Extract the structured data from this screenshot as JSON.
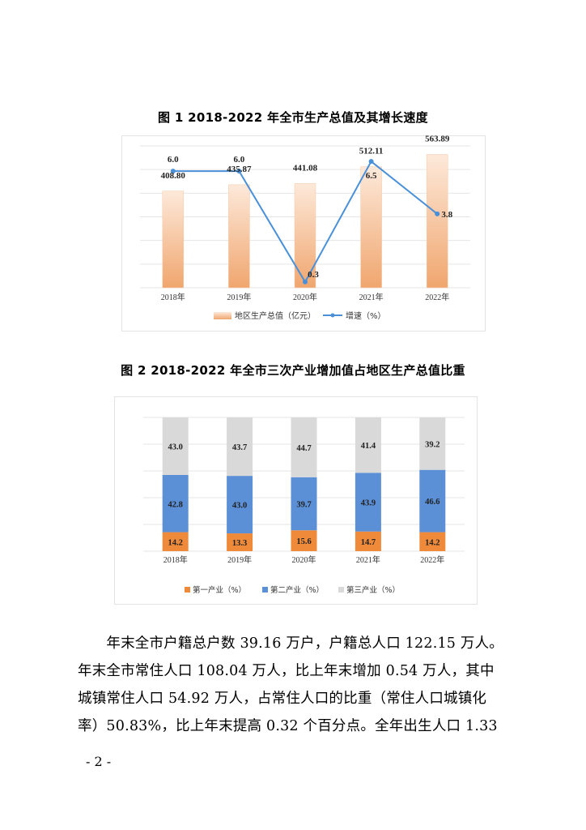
{
  "chart_data": [
    {
      "type": "bar",
      "title": "图 1   2018-2022 年全市生产总值及其增长速度",
      "categories": [
        "2018年",
        "2019年",
        "2020年",
        "2021年",
        "2022年"
      ],
      "series": [
        {
          "name": "地区生产总值（亿元）",
          "type": "bar",
          "values": [
            408.8,
            435.87,
            441.08,
            512.11,
            563.89
          ]
        },
        {
          "name": "增速（%）",
          "type": "line",
          "values": [
            6.0,
            6.0,
            0.3,
            6.5,
            3.8
          ]
        }
      ],
      "value_labels": {
        "bar": [
          "408.80",
          "435.87",
          "441.08",
          "512.11",
          "563.89"
        ],
        "line": [
          "6.0",
          "6.0",
          "0.3",
          "6.5",
          "3.8"
        ]
      },
      "ylim_bar": [
        0,
        600
      ],
      "ylim_line": [
        0,
        7.3
      ],
      "grid": true,
      "legend": "bottom",
      "colors": {
        "bar_top": "#fde9da",
        "bar_bottom": "#f0a66e",
        "line": "#4a90d9"
      }
    },
    {
      "type": "bar",
      "stacked": true,
      "title": "图 2   2018-2022 年全市三次产业增加值占地区生产总值比重",
      "categories": [
        "2018年",
        "2019年",
        "2020年",
        "2021年",
        "2022年"
      ],
      "series": [
        {
          "name": "第一产业（%）",
          "values": [
            14.2,
            13.3,
            15.6,
            14.7,
            14.2
          ]
        },
        {
          "name": "第二产业（%）",
          "values": [
            42.8,
            43.0,
            39.7,
            43.9,
            46.6
          ]
        },
        {
          "name": "第三产业（%）",
          "values": [
            43.0,
            43.7,
            44.7,
            41.4,
            39.2
          ]
        }
      ],
      "value_labels": [
        [
          "14.2",
          "13.3",
          "15.6",
          "14.7",
          "14.2"
        ],
        [
          "42.8",
          "43.0",
          "39.7",
          "43.9",
          "46.6"
        ],
        [
          "43.0",
          "43.7",
          "44.7",
          "41.4",
          "39.2"
        ]
      ],
      "ylim": [
        0,
        100
      ],
      "grid": true,
      "legend": "bottom",
      "colors": {
        "primary": "#ee8a3a",
        "secondary": "#5b8fd6",
        "tertiary": "#d9d9d9"
      }
    }
  ],
  "body_text": {
    "lines": [
      "　　年末全市户籍总户数 39.16 万户，户籍总人口 122.15 万人。",
      "年末全市常住人口 108.04 万人，比上年末增加 0.54 万人，其中",
      "城镇常住人口 54.92 万人，占常住人口的比重（常住人口城镇化",
      "率）50.83%，比上年末提高 0.32 个百分点。全年出生人口 1.33"
    ]
  },
  "page_number": "- 2 -"
}
